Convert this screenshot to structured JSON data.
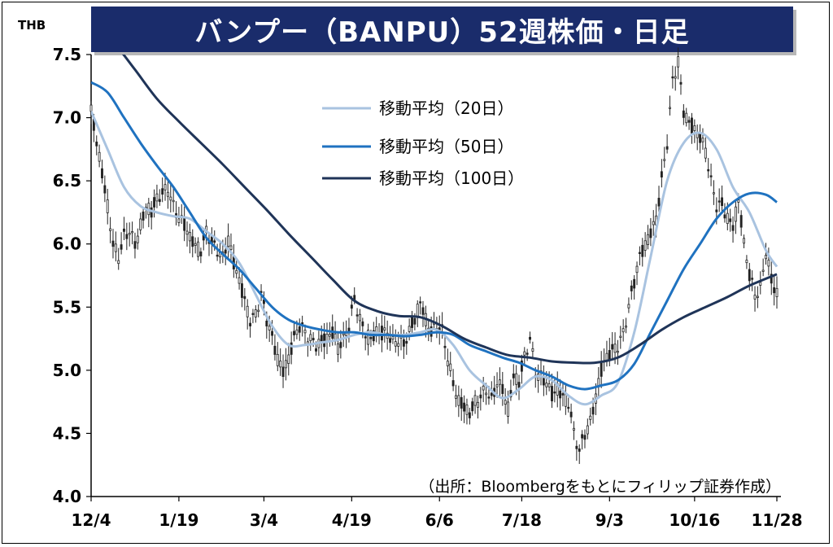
{
  "title": "バンプー（BANPU）52週株価・日足",
  "unit": "THB",
  "source": "（出所：Bloombergをもとにフィリップ証券作成）",
  "colors": {
    "banner": "#1a2c6b",
    "ma20": "#a9c3e0",
    "ma50": "#1f72c0",
    "ma100": "#1f3458",
    "candle": "#222222"
  },
  "chart_data": {
    "type": "line",
    "ylim": [
      4.0,
      7.5
    ],
    "yticks": [
      "4.0",
      "4.5",
      "5.0",
      "5.5",
      "6.0",
      "6.5",
      "7.0",
      "7.5"
    ],
    "xticks": [
      "12/4",
      "1/19",
      "3/4",
      "4/19",
      "6/6",
      "7/18",
      "9/3",
      "10/16",
      "11/28"
    ],
    "xtick_positions": [
      0,
      32,
      63,
      95,
      127,
      157,
      189,
      220,
      250
    ],
    "x_count": 251,
    "grid": false,
    "legend_position": "top-center",
    "series": [
      {
        "name": "移動平均（20日）",
        "color": "#a9c3e0",
        "points": [
          [
            0,
            7.05
          ],
          [
            6,
            6.75
          ],
          [
            12,
            6.45
          ],
          [
            18,
            6.3
          ],
          [
            24,
            6.25
          ],
          [
            30,
            6.22
          ],
          [
            36,
            6.2
          ],
          [
            42,
            6.1
          ],
          [
            48,
            6.0
          ],
          [
            54,
            5.85
          ],
          [
            60,
            5.6
          ],
          [
            66,
            5.35
          ],
          [
            72,
            5.2
          ],
          [
            78,
            5.2
          ],
          [
            84,
            5.22
          ],
          [
            90,
            5.24
          ],
          [
            96,
            5.28
          ],
          [
            102,
            5.3
          ],
          [
            108,
            5.28
          ],
          [
            114,
            5.28
          ],
          [
            120,
            5.3
          ],
          [
            126,
            5.32
          ],
          [
            132,
            5.2
          ],
          [
            138,
            5.0
          ],
          [
            144,
            4.88
          ],
          [
            150,
            4.78
          ],
          [
            156,
            4.85
          ],
          [
            162,
            4.95
          ],
          [
            168,
            4.92
          ],
          [
            174,
            4.8
          ],
          [
            180,
            4.73
          ],
          [
            186,
            4.8
          ],
          [
            192,
            4.9
          ],
          [
            198,
            5.3
          ],
          [
            204,
            5.9
          ],
          [
            210,
            6.5
          ],
          [
            216,
            6.8
          ],
          [
            222,
            6.88
          ],
          [
            228,
            6.75
          ],
          [
            234,
            6.45
          ],
          [
            240,
            6.25
          ],
          [
            246,
            5.95
          ],
          [
            250,
            5.82
          ]
        ]
      },
      {
        "name": "移動平均（50日）",
        "color": "#1f72c0",
        "points": [
          [
            0,
            7.28
          ],
          [
            6,
            7.2
          ],
          [
            12,
            7.0
          ],
          [
            18,
            6.8
          ],
          [
            24,
            6.62
          ],
          [
            30,
            6.45
          ],
          [
            36,
            6.25
          ],
          [
            42,
            6.05
          ],
          [
            48,
            5.92
          ],
          [
            54,
            5.8
          ],
          [
            60,
            5.65
          ],
          [
            66,
            5.5
          ],
          [
            72,
            5.4
          ],
          [
            78,
            5.35
          ],
          [
            84,
            5.32
          ],
          [
            90,
            5.3
          ],
          [
            96,
            5.3
          ],
          [
            102,
            5.28
          ],
          [
            108,
            5.28
          ],
          [
            114,
            5.27
          ],
          [
            120,
            5.28
          ],
          [
            126,
            5.3
          ],
          [
            132,
            5.28
          ],
          [
            138,
            5.2
          ],
          [
            144,
            5.15
          ],
          [
            150,
            5.1
          ],
          [
            156,
            5.06
          ],
          [
            162,
            5.0
          ],
          [
            168,
            4.95
          ],
          [
            174,
            4.88
          ],
          [
            180,
            4.85
          ],
          [
            186,
            4.88
          ],
          [
            192,
            4.92
          ],
          [
            198,
            5.05
          ],
          [
            204,
            5.3
          ],
          [
            210,
            5.55
          ],
          [
            216,
            5.8
          ],
          [
            222,
            6.0
          ],
          [
            228,
            6.2
          ],
          [
            234,
            6.33
          ],
          [
            240,
            6.4
          ],
          [
            246,
            6.39
          ],
          [
            250,
            6.33
          ]
        ]
      },
      {
        "name": "移動平均（100日）",
        "color": "#1f3458",
        "points": [
          [
            0,
            7.75
          ],
          [
            8,
            7.6
          ],
          [
            16,
            7.38
          ],
          [
            24,
            7.15
          ],
          [
            32,
            6.97
          ],
          [
            40,
            6.8
          ],
          [
            48,
            6.63
          ],
          [
            56,
            6.45
          ],
          [
            64,
            6.27
          ],
          [
            72,
            6.08
          ],
          [
            80,
            5.9
          ],
          [
            88,
            5.72
          ],
          [
            96,
            5.55
          ],
          [
            104,
            5.47
          ],
          [
            112,
            5.43
          ],
          [
            120,
            5.42
          ],
          [
            128,
            5.35
          ],
          [
            136,
            5.25
          ],
          [
            144,
            5.18
          ],
          [
            152,
            5.12
          ],
          [
            160,
            5.1
          ],
          [
            168,
            5.07
          ],
          [
            176,
            5.06
          ],
          [
            184,
            5.06
          ],
          [
            192,
            5.1
          ],
          [
            200,
            5.2
          ],
          [
            208,
            5.32
          ],
          [
            216,
            5.42
          ],
          [
            224,
            5.5
          ],
          [
            232,
            5.58
          ],
          [
            240,
            5.67
          ],
          [
            250,
            5.76
          ]
        ]
      }
    ],
    "price_close": [
      [
        0,
        7.05
      ],
      [
        2,
        6.8
      ],
      [
        4,
        6.55
      ],
      [
        6,
        6.3
      ],
      [
        8,
        6.0
      ],
      [
        10,
        5.9
      ],
      [
        12,
        6.05
      ],
      [
        14,
        6.1
      ],
      [
        16,
        6.0
      ],
      [
        18,
        6.15
      ],
      [
        20,
        6.3
      ],
      [
        22,
        6.25
      ],
      [
        24,
        6.35
      ],
      [
        26,
        6.4
      ],
      [
        28,
        6.45
      ],
      [
        30,
        6.3
      ],
      [
        32,
        6.2
      ],
      [
        34,
        6.15
      ],
      [
        36,
        6.05
      ],
      [
        38,
        6.0
      ],
      [
        40,
        5.95
      ],
      [
        42,
        6.1
      ],
      [
        44,
        6.0
      ],
      [
        46,
        5.95
      ],
      [
        48,
        5.9
      ],
      [
        50,
        6.05
      ],
      [
        52,
        5.85
      ],
      [
        54,
        5.7
      ],
      [
        56,
        5.55
      ],
      [
        58,
        5.4
      ],
      [
        60,
        5.45
      ],
      [
        62,
        5.6
      ],
      [
        64,
        5.4
      ],
      [
        66,
        5.25
      ],
      [
        68,
        5.1
      ],
      [
        70,
        5.0
      ],
      [
        72,
        5.1
      ],
      [
        74,
        5.25
      ],
      [
        76,
        5.35
      ],
      [
        78,
        5.3
      ],
      [
        80,
        5.25
      ],
      [
        82,
        5.2
      ],
      [
        84,
        5.22
      ],
      [
        86,
        5.25
      ],
      [
        88,
        5.3
      ],
      [
        90,
        5.2
      ],
      [
        92,
        5.25
      ],
      [
        94,
        5.35
      ],
      [
        96,
        5.55
      ],
      [
        98,
        5.4
      ],
      [
        100,
        5.3
      ],
      [
        102,
        5.25
      ],
      [
        104,
        5.3
      ],
      [
        106,
        5.28
      ],
      [
        108,
        5.3
      ],
      [
        110,
        5.22
      ],
      [
        112,
        5.25
      ],
      [
        114,
        5.2
      ],
      [
        116,
        5.3
      ],
      [
        118,
        5.4
      ],
      [
        120,
        5.55
      ],
      [
        122,
        5.4
      ],
      [
        124,
        5.3
      ],
      [
        126,
        5.35
      ],
      [
        128,
        5.3
      ],
      [
        130,
        5.1
      ],
      [
        132,
        4.9
      ],
      [
        134,
        4.75
      ],
      [
        136,
        4.7
      ],
      [
        138,
        4.65
      ],
      [
        140,
        4.75
      ],
      [
        142,
        4.8
      ],
      [
        144,
        4.85
      ],
      [
        146,
        4.75
      ],
      [
        148,
        4.9
      ],
      [
        150,
        4.85
      ],
      [
        152,
        4.7
      ],
      [
        154,
        4.95
      ],
      [
        156,
        4.9
      ],
      [
        158,
        5.1
      ],
      [
        160,
        5.25
      ],
      [
        162,
        5.0
      ],
      [
        164,
        4.95
      ],
      [
        166,
        4.9
      ],
      [
        168,
        4.8
      ],
      [
        170,
        4.85
      ],
      [
        172,
        4.8
      ],
      [
        174,
        4.75
      ],
      [
        176,
        4.5
      ],
      [
        178,
        4.35
      ],
      [
        180,
        4.5
      ],
      [
        182,
        4.6
      ],
      [
        184,
        4.8
      ],
      [
        186,
        5.0
      ],
      [
        188,
        5.1
      ],
      [
        190,
        5.15
      ],
      [
        192,
        5.2
      ],
      [
        194,
        5.3
      ],
      [
        196,
        5.5
      ],
      [
        198,
        5.7
      ],
      [
        200,
        5.9
      ],
      [
        202,
        6.0
      ],
      [
        204,
        6.1
      ],
      [
        206,
        6.2
      ],
      [
        208,
        6.5
      ],
      [
        210,
        6.8
      ],
      [
        212,
        7.3
      ],
      [
        214,
        7.45
      ],
      [
        216,
        7.05
      ],
      [
        218,
        6.95
      ],
      [
        220,
        6.9
      ],
      [
        222,
        6.85
      ],
      [
        224,
        6.75
      ],
      [
        226,
        6.5
      ],
      [
        228,
        6.3
      ],
      [
        230,
        6.3
      ],
      [
        232,
        6.2
      ],
      [
        234,
        6.15
      ],
      [
        236,
        6.35
      ],
      [
        238,
        6.0
      ],
      [
        240,
        5.75
      ],
      [
        242,
        5.6
      ],
      [
        244,
        5.65
      ],
      [
        246,
        5.95
      ],
      [
        248,
        5.7
      ],
      [
        250,
        5.6
      ]
    ]
  }
}
